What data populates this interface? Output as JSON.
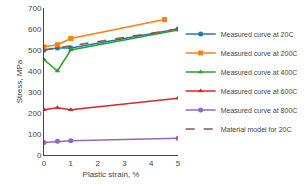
{
  "chart_data": {
    "type": "line",
    "xlabel": "Plastic strain, %",
    "ylabel": "Stress, MPa",
    "xlim": [
      0,
      5
    ],
    "ylim": [
      0,
      700
    ],
    "xticks": [
      0,
      1,
      2,
      3,
      4,
      5
    ],
    "yticks": [
      0,
      100,
      200,
      300,
      400,
      500,
      600,
      700
    ],
    "grid": false,
    "legend": "right",
    "series": [
      {
        "name": "Measured curve at 20C",
        "x": [
          0,
          0.5,
          1,
          5
        ],
        "values": [
          500,
          510,
          510,
          600
        ],
        "marker": "circle",
        "line_style": "solid"
      },
      {
        "name": "Measured curve at 200C",
        "x": [
          0,
          0.5,
          1,
          4.5
        ],
        "values": [
          515,
          525,
          555,
          645
        ],
        "marker": "square",
        "line_style": "solid"
      },
      {
        "name": "Measured curve at 400C",
        "x": [
          0,
          0.5,
          1,
          5
        ],
        "values": [
          455,
          400,
          500,
          595
        ],
        "marker": "triangle-up",
        "line_style": "solid"
      },
      {
        "name": "Measured curve at 600C",
        "x": [
          0,
          0.5,
          1,
          5
        ],
        "values": [
          215,
          225,
          215,
          270
        ],
        "marker": "triangle-up",
        "line_style": "solid"
      },
      {
        "name": "Measured curve at 800C",
        "x": [
          0,
          0.5,
          1,
          5
        ],
        "values": [
          60,
          65,
          68,
          80
        ],
        "marker": "circle",
        "line_style": "solid"
      },
      {
        "name": "Material model for 20C",
        "x": [
          0,
          5
        ],
        "values": [
          500,
          600
        ],
        "line_style": "dashed"
      }
    ]
  }
}
